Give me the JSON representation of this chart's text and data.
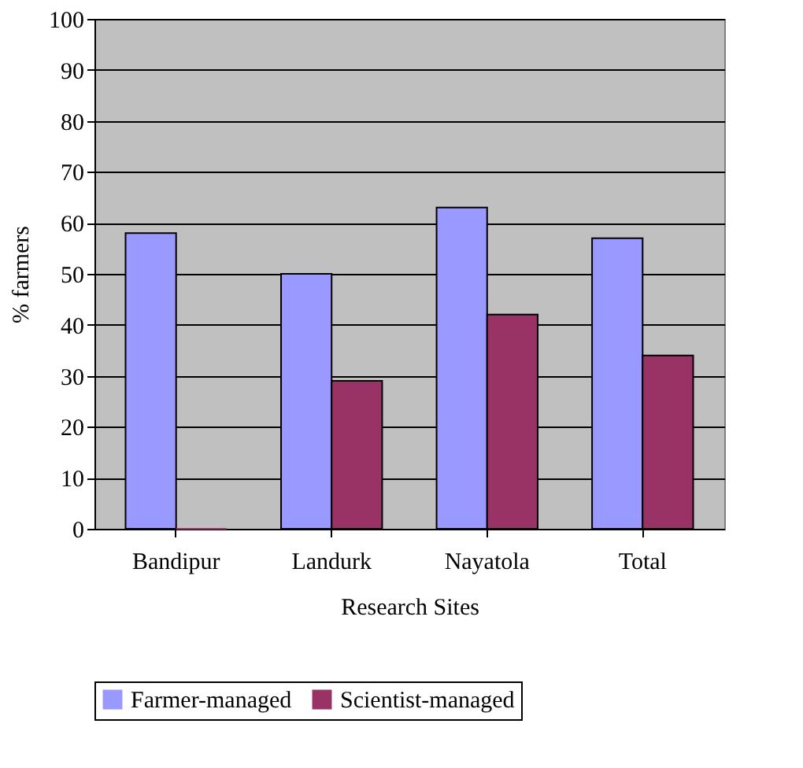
{
  "chart_data": {
    "type": "bar",
    "xlabel": "Research Sites",
    "ylabel": "% farmers",
    "categories": [
      "Bandipur",
      "Landurk",
      "Nayatola",
      "Total"
    ],
    "series": [
      {
        "name": "Farmer-managed",
        "color": "#9999ff",
        "values": [
          58,
          50,
          63,
          57
        ]
      },
      {
        "name": "Scientist-managed",
        "color": "#993366",
        "values": [
          0,
          29,
          42,
          34
        ]
      }
    ],
    "ylim": [
      0,
      100
    ],
    "yticks": [
      0,
      10,
      20,
      30,
      40,
      50,
      60,
      70,
      80,
      90,
      100
    ],
    "grid": "y",
    "legend": "bottom"
  }
}
